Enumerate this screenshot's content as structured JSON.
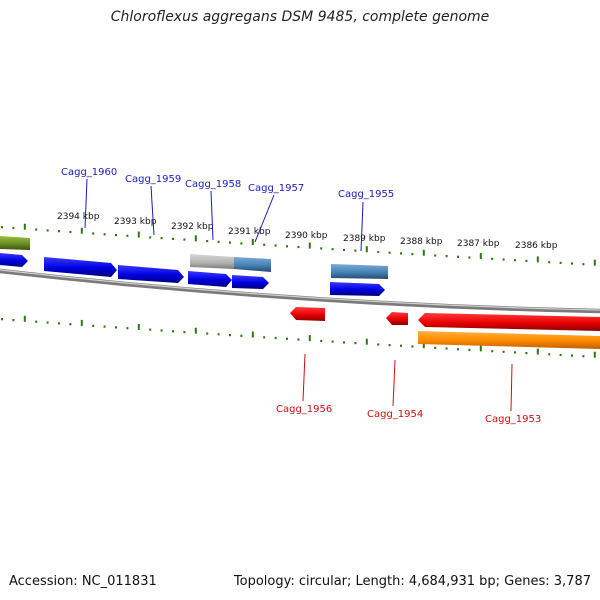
{
  "title": "Chloroflexus aggregans DSM 9485, complete genome",
  "footer": {
    "accession": "Accession: NC_011831",
    "summary": "Topology: circular; Length: 4,684,931 bp; Genes: 3,787"
  },
  "colors": {
    "forward_gene": "#0a0ad8",
    "reverse_gene": "#e01010",
    "label_forward": "#1a1ac0",
    "label_reverse": "#cc1010",
    "tick": "#2a7a10",
    "backbone": "#8a8a8a",
    "orange_track": "#ff8c00",
    "olive_gene": "#6b8e23",
    "grey_gene": "#b4b4b4",
    "steelblue_gene": "#4682b4"
  },
  "kbp_labels": [
    "2394 kbp",
    "2393 kbp",
    "2392 kbp",
    "2391 kbp",
    "2390 kbp",
    "2389 kbp",
    "2388 kbp",
    "2387 kbp",
    "2386 kbp"
  ],
  "genes_forward": [
    "Cagg_1960",
    "Cagg_1959",
    "Cagg_1958",
    "Cagg_1957",
    "Cagg_1955"
  ],
  "genes_reverse": [
    "Cagg_1956",
    "Cagg_1954",
    "Cagg_1953"
  ]
}
